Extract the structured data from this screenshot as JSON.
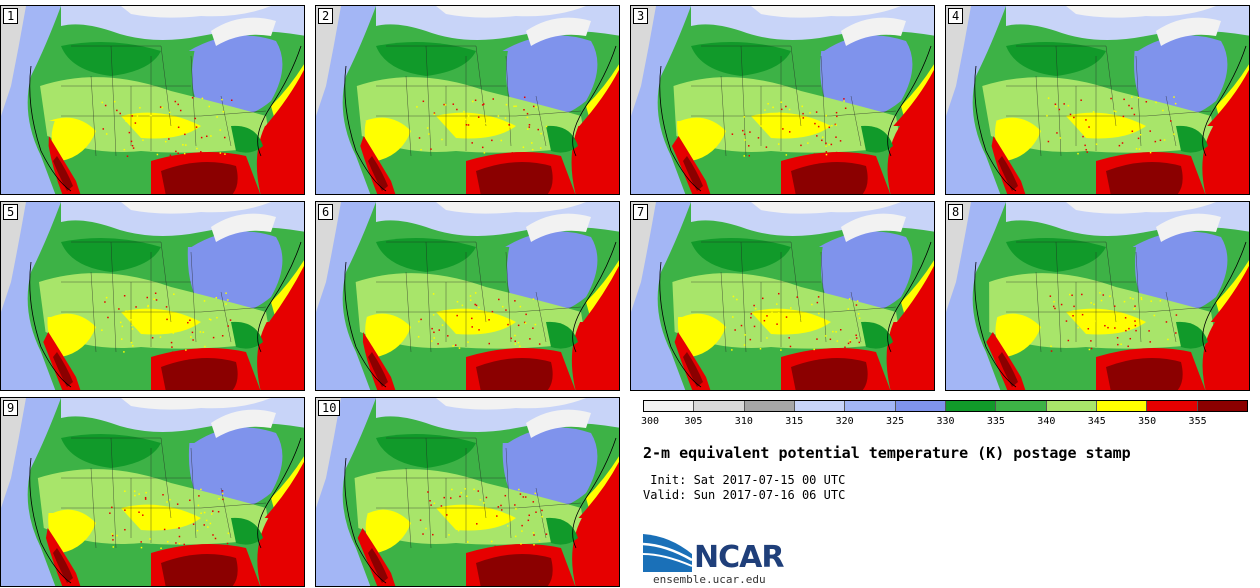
{
  "panels": [
    {
      "label": "1"
    },
    {
      "label": "2"
    },
    {
      "label": "3"
    },
    {
      "label": "4"
    },
    {
      "label": "5"
    },
    {
      "label": "6"
    },
    {
      "label": "7"
    },
    {
      "label": "8"
    },
    {
      "label": "9"
    },
    {
      "label": "10"
    }
  ],
  "colorbar": {
    "levels": [
      "300",
      "305",
      "310",
      "315",
      "320",
      "325",
      "330",
      "335",
      "340",
      "345",
      "350",
      "355"
    ],
    "colors": [
      "#f2f2f2",
      "#d9d9d9",
      "#a6a6a6",
      "#c8d4f8",
      "#a3b6f5",
      "#7f93ec",
      "#119a2a",
      "#3db246",
      "#a8e56a",
      "#ffff00",
      "#e60000",
      "#8b0000"
    ]
  },
  "title": "2-m equivalent potential temperature (K) postage stamp",
  "init": " Init: Sat 2017-07-15 00 UTC",
  "valid": "Valid: Sun 2017-07-16 06 UTC",
  "logo": {
    "text": "NCAR",
    "url": "ensemble.ucar.edu"
  }
}
